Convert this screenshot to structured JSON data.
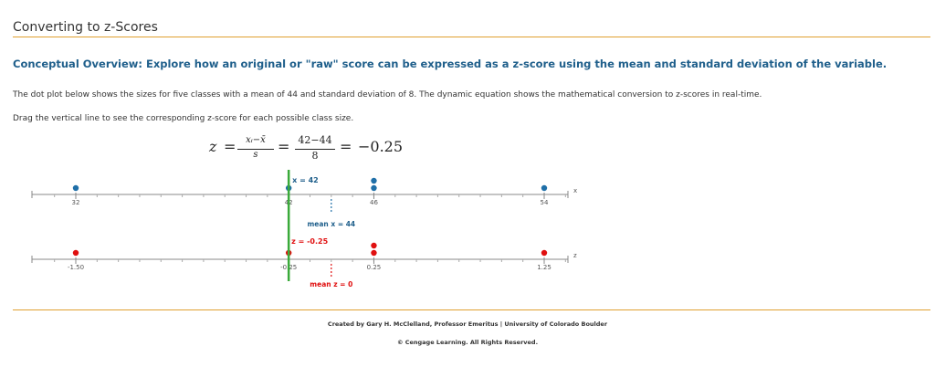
{
  "header": {
    "title": "Converting to z-Scores"
  },
  "overview": "Conceptual Overview: Explore how an original or \"raw\" score can be expressed as a z-score using the mean and standard deviation of the variable.",
  "description": {
    "line1": "The dot plot below shows the sizes for five classes with a mean of 44 and standard deviation of 8. The dynamic equation shows the mathematical conversion to z-scores in real-time.",
    "line2": "Drag the vertical line to see the corresponding z-score for each possible class size."
  },
  "equation": {
    "lhs": "z",
    "eq": "=",
    "sym_num": "xᵢ−x̄",
    "sym_den": "s",
    "num": "42−44",
    "den": "8",
    "result": "−0.25"
  },
  "x_axis": {
    "label": "x",
    "ticks": [
      "32",
      "42",
      "46",
      "54"
    ],
    "dots": [
      32,
      42,
      46,
      46,
      54
    ],
    "selected_label": "x = 42",
    "mean_label": "mean x = 44"
  },
  "z_axis": {
    "label": "z",
    "ticks": [
      "-1.50",
      "-0.25",
      "0.25",
      "1.25"
    ],
    "dots": [
      -1.5,
      -0.25,
      0.25,
      0.25,
      1.25
    ],
    "selected_label": "z = -0.25",
    "mean_label": "mean z = 0"
  },
  "state": {
    "selected_x": 42,
    "mean": 44,
    "sd": 8
  },
  "colors": {
    "x_dot": "#1f6fa8",
    "z_dot": "#e01010",
    "slider": "#3aaa3a",
    "rule": "#e0a030"
  },
  "footer": {
    "credit": "Created by Gary H. McClelland, Professor Emeritus | University of Colorado Boulder",
    "copyright": "© Cengage Learning. All Rights Reserved."
  }
}
